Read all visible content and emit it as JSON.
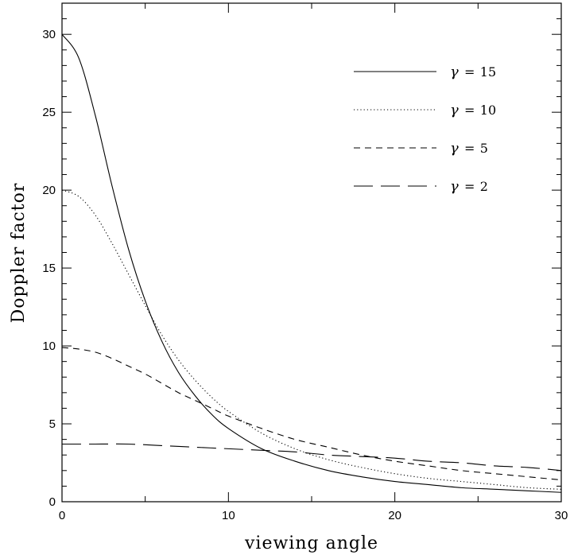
{
  "chart_data": {
    "type": "line",
    "xlabel": "viewing angle",
    "ylabel": "Doppler factor",
    "xlim": [
      0,
      30
    ],
    "ylim": [
      0,
      32
    ],
    "xticks": [
      0,
      10,
      20,
      30
    ],
    "yticks": [
      0,
      5,
      10,
      15,
      20,
      25,
      30
    ],
    "grid": false,
    "legend_position": "top-right",
    "series": [
      {
        "name": "γ = 15",
        "gamma": 15,
        "dash": "solid",
        "x": [
          0,
          1,
          2,
          3,
          4,
          5,
          6,
          7,
          8,
          9,
          10,
          12,
          14,
          16,
          18,
          20,
          22,
          24,
          26,
          28,
          30
        ],
        "y": [
          30.0,
          28.5,
          24.8,
          20.3,
          16.2,
          12.9,
          10.3,
          8.3,
          6.8,
          5.6,
          4.7,
          3.4,
          2.6,
          2.0,
          1.6,
          1.3,
          1.1,
          0.9,
          0.8,
          0.7,
          0.6
        ]
      },
      {
        "name": "γ = 10",
        "gamma": 10,
        "dash": "dotted",
        "x": [
          0,
          1,
          2,
          3,
          4,
          5,
          6,
          7,
          8,
          9,
          10,
          12,
          14,
          16,
          18,
          20,
          22,
          24,
          26,
          28,
          30
        ],
        "y": [
          20.0,
          19.6,
          18.4,
          16.6,
          14.6,
          12.6,
          10.7,
          9.1,
          7.8,
          6.7,
          5.8,
          4.4,
          3.4,
          2.7,
          2.2,
          1.8,
          1.5,
          1.3,
          1.1,
          0.9,
          0.8
        ]
      },
      {
        "name": "γ = 5",
        "gamma": 5,
        "dash": "dashed",
        "x": [
          0,
          1,
          2,
          3,
          4,
          5,
          6,
          7,
          8,
          9,
          10,
          12,
          14,
          16,
          18,
          20,
          22,
          24,
          26,
          28,
          30
        ],
        "y": [
          9.9,
          9.8,
          9.6,
          9.2,
          8.7,
          8.2,
          7.6,
          7.0,
          6.5,
          6.0,
          5.5,
          4.7,
          4.0,
          3.5,
          3.0,
          2.6,
          2.3,
          2.0,
          1.8,
          1.6,
          1.4
        ]
      },
      {
        "name": "γ = 2",
        "gamma": 2,
        "dash": "long-dashed",
        "x": [
          0,
          2,
          4,
          6,
          8,
          10,
          12,
          14,
          16,
          18,
          20,
          22,
          24,
          26,
          28,
          30
        ],
        "y": [
          3.7,
          3.7,
          3.7,
          3.6,
          3.5,
          3.4,
          3.3,
          3.2,
          3.0,
          2.9,
          2.8,
          2.6,
          2.5,
          2.3,
          2.2,
          2.0
        ]
      }
    ],
    "legend_labels": [
      {
        "gamma": "γ",
        "eq": " = ",
        "value": "15"
      },
      {
        "gamma": "γ",
        "eq": " = ",
        "value": "10"
      },
      {
        "gamma": "γ",
        "eq": " = ",
        "value": "5"
      },
      {
        "gamma": "γ",
        "eq": " = ",
        "value": "2"
      }
    ]
  }
}
